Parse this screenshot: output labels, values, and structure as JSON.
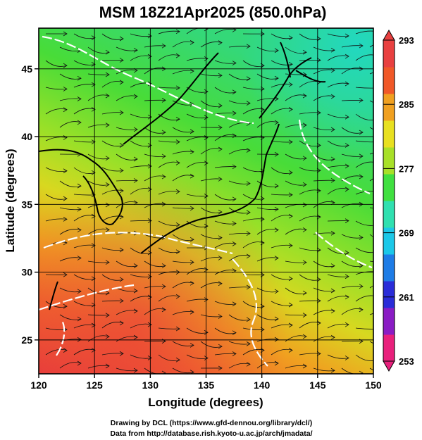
{
  "title": "MSM 18Z21Apr2025 (850.0hPa)",
  "x_axis": {
    "label": "Longitude (degrees)",
    "ticks": [
      "120",
      "125",
      "130",
      "135",
      "140",
      "145",
      "150"
    ]
  },
  "y_axis": {
    "label": "Latitude  (degrees)",
    "ticks": [
      "25",
      "30",
      "35",
      "40",
      "45"
    ]
  },
  "colorbar": {
    "ticks": [
      "293",
      "285",
      "277",
      "269",
      "261",
      "253"
    ],
    "colors": [
      "#e8207c",
      "#8a1cc4",
      "#2a2cd8",
      "#1e7ce6",
      "#1cc8e8",
      "#30e0b0",
      "#40e040",
      "#a8e028",
      "#e8e020",
      "#f0a020",
      "#f05828",
      "#e84040"
    ]
  },
  "credits": {
    "line1": "Drawing by DCL (https://www.gfd-dennou.org/library/dcl/)",
    "line2": "Data from http://database.rish.kyoto-u.ac.jp/arch/jmadata/"
  },
  "chart_data": {
    "type": "heatmap",
    "variable": "temperature",
    "level": "850.0hPa",
    "x_range": [
      120,
      150
    ],
    "y_range": [
      22.5,
      48
    ],
    "color_range": [
      253,
      293
    ],
    "x_ticks": [
      120,
      125,
      130,
      135,
      140,
      145,
      150
    ],
    "y_ticks": [
      25,
      30,
      35,
      40,
      45
    ],
    "grid": true,
    "overlay": "wind streamlines"
  }
}
